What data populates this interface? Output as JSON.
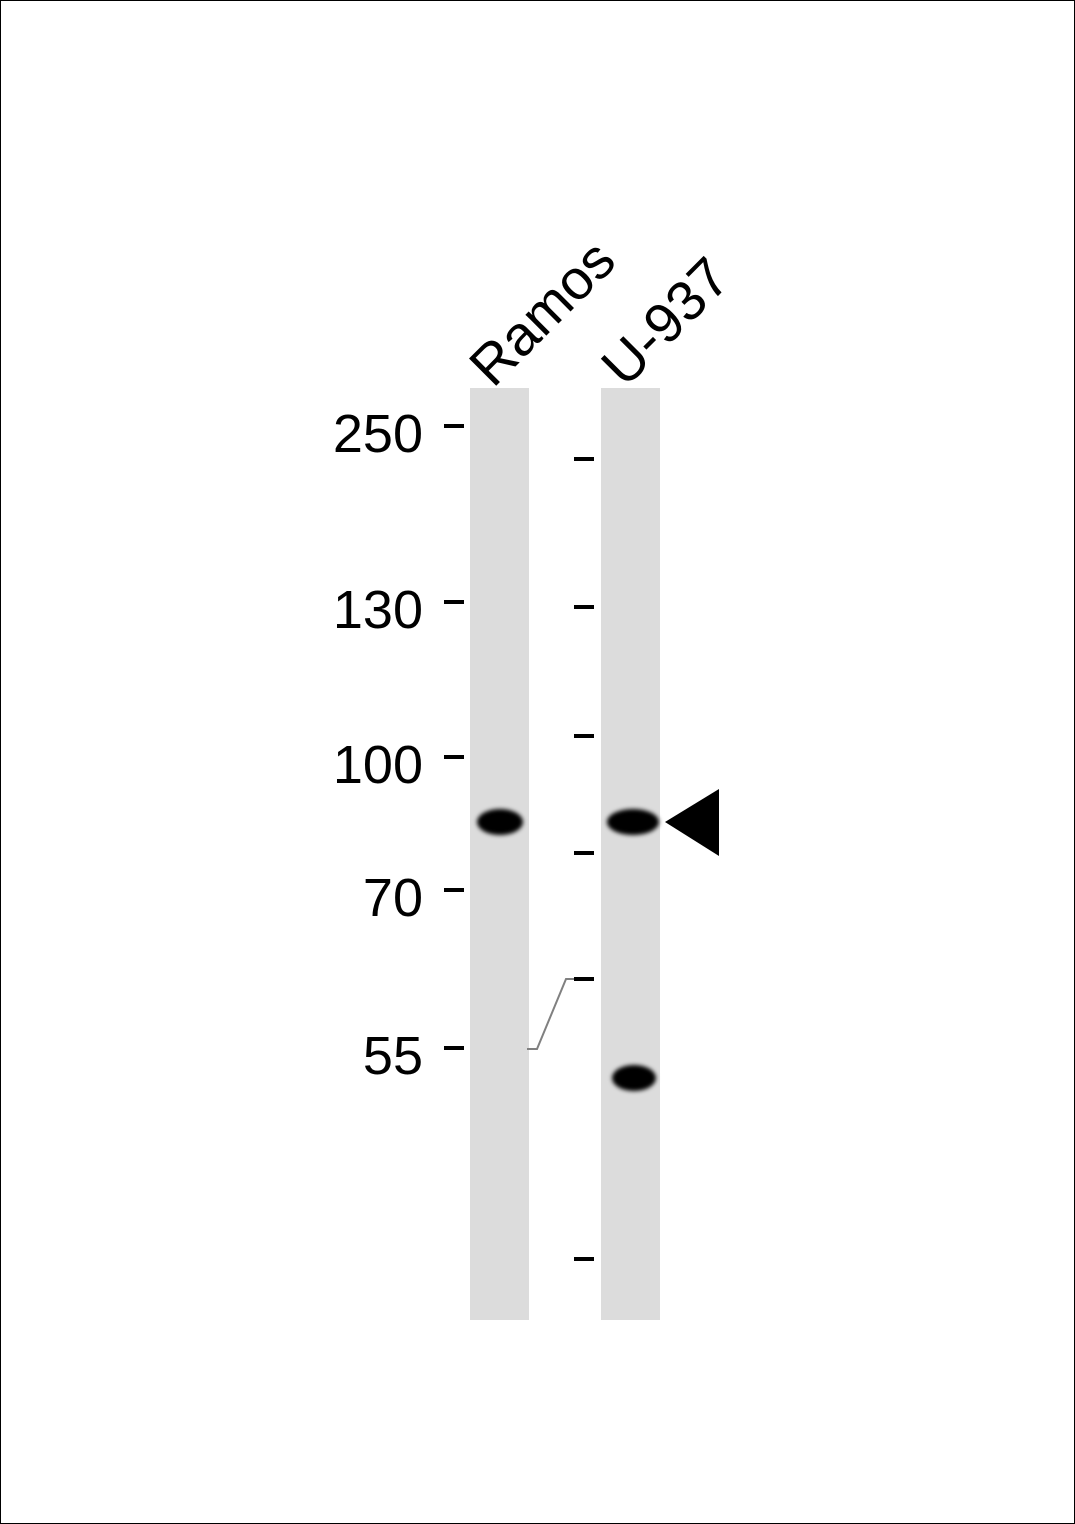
{
  "lanes": [
    {
      "label": "Ramos"
    },
    {
      "label": "U-937"
    }
  ],
  "markers": [
    "250",
    "130",
    "100",
    "70",
    "55"
  ],
  "colors": {
    "lane_background": "#dcdcdc",
    "band": "#000000",
    "connector": "#808080"
  },
  "annotation": {
    "arrow_icon": "left-pointing-triangle"
  }
}
